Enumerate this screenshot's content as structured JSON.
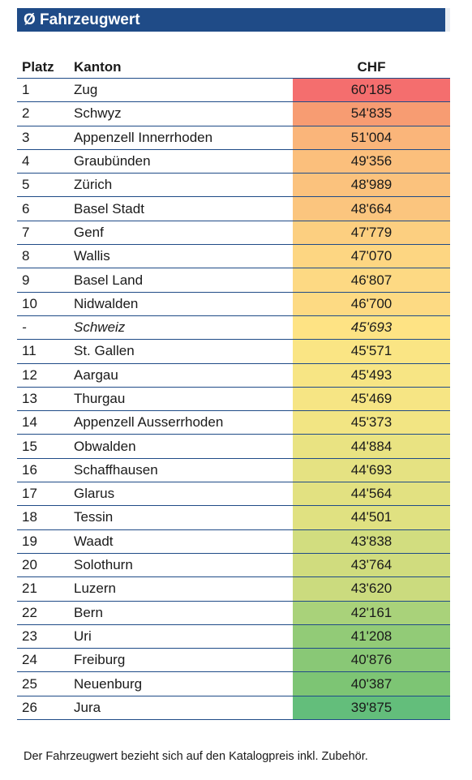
{
  "title": "Ø Fahrzeugwert",
  "headers": {
    "rank": "Platz",
    "canton": "Kanton",
    "value": "CHF"
  },
  "rows": [
    {
      "rank": "1",
      "canton": "Zug",
      "value": "60'185",
      "color": "#f46e6e"
    },
    {
      "rank": "2",
      "canton": "Schwyz",
      "value": "54'835",
      "color": "#f79c72"
    },
    {
      "rank": "3",
      "canton": "Appenzell Innerrhoden",
      "value": "51'004",
      "color": "#fab57a"
    },
    {
      "rank": "4",
      "canton": "Graubünden",
      "value": "49'356",
      "color": "#fbbf7c"
    },
    {
      "rank": "5",
      "canton": "Zürich",
      "value": "48'989",
      "color": "#fbc27d"
    },
    {
      "rank": "6",
      "canton": "Basel Stadt",
      "value": "48'664",
      "color": "#fbc57e"
    },
    {
      "rank": "7",
      "canton": "Genf",
      "value": "47'779",
      "color": "#fccf80"
    },
    {
      "rank": "8",
      "canton": "Wallis",
      "value": "47'070",
      "color": "#fdd682"
    },
    {
      "rank": "9",
      "canton": "Basel Land",
      "value": "46'807",
      "color": "#fdd983"
    },
    {
      "rank": "10",
      "canton": "Nidwalden",
      "value": "46'700",
      "color": "#fdda83"
    },
    {
      "rank": "-",
      "canton": "Schweiz",
      "value": "45'693",
      "color": "#fee384",
      "italic": true
    },
    {
      "rank": "11",
      "canton": "St. Gallen",
      "value": "45'571",
      "color": "#fae584"
    },
    {
      "rank": "12",
      "canton": "Aargau",
      "value": "45'493",
      "color": "#f7e584"
    },
    {
      "rank": "13",
      "canton": "Thurgau",
      "value": "45'469",
      "color": "#f6e584"
    },
    {
      "rank": "14",
      "canton": "Appenzell Ausserrhoden",
      "value": "45'373",
      "color": "#f2e583"
    },
    {
      "rank": "15",
      "canton": "Obwalden",
      "value": "44'884",
      "color": "#e9e382"
    },
    {
      "rank": "16",
      "canton": "Schaffhausen",
      "value": "44'693",
      "color": "#e5e282"
    },
    {
      "rank": "17",
      "canton": "Glarus",
      "value": "44'564",
      "color": "#e2e181"
    },
    {
      "rank": "18",
      "canton": "Tessin",
      "value": "44'501",
      "color": "#e0e181"
    },
    {
      "rank": "19",
      "canton": "Waadt",
      "value": "43'838",
      "color": "#d2dd7f"
    },
    {
      "rank": "20",
      "canton": "Solothurn",
      "value": "43'764",
      "color": "#d0dc7e"
    },
    {
      "rank": "21",
      "canton": "Luzern",
      "value": "43'620",
      "color": "#cbdb7e"
    },
    {
      "rank": "22",
      "canton": "Bern",
      "value": "42'161",
      "color": "#a9d27a"
    },
    {
      "rank": "23",
      "canton": "Uri",
      "value": "41'208",
      "color": "#92cb77"
    },
    {
      "rank": "24",
      "canton": "Freiburg",
      "value": "40'876",
      "color": "#89c876"
    },
    {
      "rank": "25",
      "canton": "Neuenburg",
      "value": "40'387",
      "color": "#7dc574"
    },
    {
      "rank": "26",
      "canton": "Jura",
      "value": "39'875",
      "color": "#63be7b"
    }
  ],
  "footnote": "Der Fahrzeugwert bezieht sich auf den Katalogpreis inkl. Zubehör."
}
